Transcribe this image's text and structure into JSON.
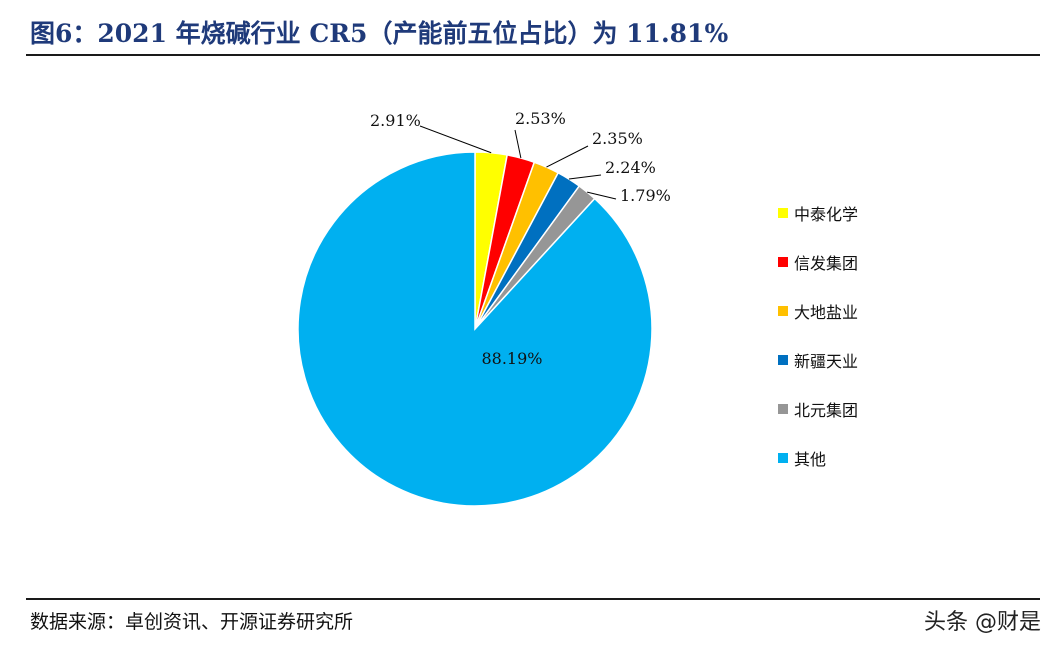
{
  "header": {
    "title": "图6：2021 年烧碱行业 CR5（产能前五位占比）为 11.81%"
  },
  "footer": {
    "source": "数据来源：卓创资讯、开源证券研究所",
    "watermark": "头条 @财是"
  },
  "chart_data": {
    "type": "pie",
    "title": "",
    "start_angle": "12 o'clock, clockwise",
    "legend_position": "right",
    "slices": [
      {
        "name": "中泰化学",
        "value": 2.91,
        "label": "2.91%",
        "color": "#FFFF00"
      },
      {
        "name": "信发集团",
        "value": 2.53,
        "label": "2.53%",
        "color": "#FF0000"
      },
      {
        "name": "大地盐业",
        "value": 2.35,
        "label": "2.35%",
        "color": "#FFC000"
      },
      {
        "name": "新疆天业",
        "value": 2.24,
        "label": "2.24%",
        "color": "#0070C0"
      },
      {
        "name": "北元集团",
        "value": 1.79,
        "label": "1.79%",
        "color": "#969696"
      },
      {
        "name": "其他",
        "value": 88.19,
        "label": "88.19%",
        "color": "#00B0F0"
      }
    ]
  }
}
